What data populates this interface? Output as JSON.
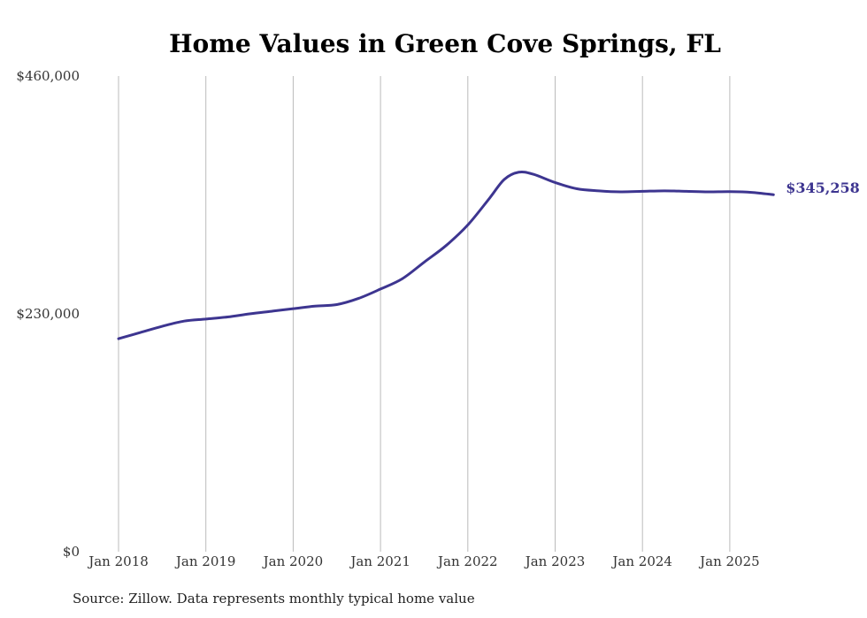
{
  "chart_data": {
    "type": "line",
    "title": "Home Values in Green Cove Springs, FL",
    "xlabel": "",
    "ylabel": "",
    "ylim": [
      0,
      460000
    ],
    "y_ticks": [
      {
        "value": 0,
        "label": "$0"
      },
      {
        "value": 230000,
        "label": "$230,000"
      },
      {
        "value": 460000,
        "label": "$460,000"
      }
    ],
    "x_ticks": [
      {
        "date": "2018-01",
        "label": "Jan 2018"
      },
      {
        "date": "2019-01",
        "label": "Jan 2019"
      },
      {
        "date": "2020-01",
        "label": "Jan 2020"
      },
      {
        "date": "2021-01",
        "label": "Jan 2021"
      },
      {
        "date": "2022-01",
        "label": "Jan 2022"
      },
      {
        "date": "2023-01",
        "label": "Jan 2023"
      },
      {
        "date": "2024-01",
        "label": "Jan 2024"
      },
      {
        "date": "2025-01",
        "label": "Jan 2025"
      }
    ],
    "grid": {
      "vertical": true,
      "horizontal": false
    },
    "series": [
      {
        "color": "#3d3590",
        "end_label": "$345,258",
        "points": [
          {
            "x": "2018-01",
            "y": 206000
          },
          {
            "x": "2018-04",
            "y": 212000
          },
          {
            "x": "2018-07",
            "y": 218000
          },
          {
            "x": "2018-10",
            "y": 223000
          },
          {
            "x": "2019-01",
            "y": 225000
          },
          {
            "x": "2019-04",
            "y": 227000
          },
          {
            "x": "2019-07",
            "y": 230000
          },
          {
            "x": "2019-10",
            "y": 232500
          },
          {
            "x": "2020-01",
            "y": 235000
          },
          {
            "x": "2020-04",
            "y": 237500
          },
          {
            "x": "2020-07",
            "y": 239000
          },
          {
            "x": "2020-10",
            "y": 245000
          },
          {
            "x": "2021-01",
            "y": 254000
          },
          {
            "x": "2021-04",
            "y": 264000
          },
          {
            "x": "2021-07",
            "y": 280000
          },
          {
            "x": "2021-10",
            "y": 296000
          },
          {
            "x": "2022-01",
            "y": 316000
          },
          {
            "x": "2022-04",
            "y": 342000
          },
          {
            "x": "2022-06",
            "y": 360000
          },
          {
            "x": "2022-08",
            "y": 367000
          },
          {
            "x": "2022-10",
            "y": 365000
          },
          {
            "x": "2023-01",
            "y": 357000
          },
          {
            "x": "2023-04",
            "y": 351000
          },
          {
            "x": "2023-07",
            "y": 349000
          },
          {
            "x": "2023-10",
            "y": 348000
          },
          {
            "x": "2024-01",
            "y": 348500
          },
          {
            "x": "2024-04",
            "y": 349000
          },
          {
            "x": "2024-07",
            "y": 348500
          },
          {
            "x": "2024-10",
            "y": 348000
          },
          {
            "x": "2025-01",
            "y": 348200
          },
          {
            "x": "2025-04",
            "y": 347500
          },
          {
            "x": "2025-07",
            "y": 345258
          }
        ]
      }
    ]
  },
  "footer": {
    "source": "Source: Zillow. Data represents monthly typical home value"
  }
}
